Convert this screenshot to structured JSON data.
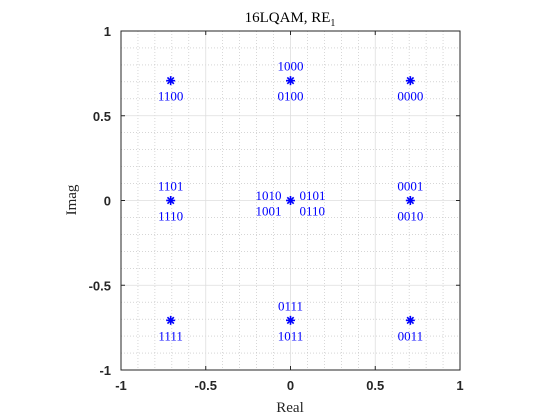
{
  "chart_data": {
    "type": "scatter",
    "title": "16LQAM, RE",
    "title_subscript": "1",
    "xlabel": "Real",
    "ylabel": "Imag",
    "xlim": [
      -1,
      1
    ],
    "ylim": [
      -1,
      1
    ],
    "xticks": [
      "-1",
      "-0.5",
      "0",
      "0.5",
      "1"
    ],
    "yticks": [
      "1",
      "0.5",
      "0",
      "-0.5",
      "-1"
    ],
    "grid": true,
    "minor_grid": true,
    "marker": "asterisk",
    "color": "#0000ff",
    "points": [
      {
        "x": -0.707,
        "y": 0.707,
        "labels": [
          {
            "text": "1100",
            "pos": "below"
          }
        ]
      },
      {
        "x": 0,
        "y": 0.707,
        "labels": [
          {
            "text": "1000",
            "pos": "above"
          },
          {
            "text": "0100",
            "pos": "below"
          }
        ]
      },
      {
        "x": 0.707,
        "y": 0.707,
        "labels": [
          {
            "text": "0000",
            "pos": "below"
          }
        ]
      },
      {
        "x": -0.707,
        "y": 0,
        "labels": [
          {
            "text": "1101",
            "pos": "above"
          },
          {
            "text": "1110",
            "pos": "below"
          }
        ]
      },
      {
        "x": 0,
        "y": 0,
        "labels": [
          {
            "text": "1010",
            "pos": "above-left"
          },
          {
            "text": "1001",
            "pos": "below-left"
          },
          {
            "text": "0101",
            "pos": "above-right"
          },
          {
            "text": "0110",
            "pos": "below-right"
          }
        ]
      },
      {
        "x": 0.707,
        "y": 0,
        "labels": [
          {
            "text": "0001",
            "pos": "above"
          },
          {
            "text": "0010",
            "pos": "below"
          }
        ]
      },
      {
        "x": -0.707,
        "y": -0.707,
        "labels": [
          {
            "text": "1111",
            "pos": "below"
          }
        ]
      },
      {
        "x": 0,
        "y": -0.707,
        "labels": [
          {
            "text": "0111",
            "pos": "above"
          },
          {
            "text": "1011",
            "pos": "below"
          }
        ]
      },
      {
        "x": 0.707,
        "y": -0.707,
        "labels": [
          {
            "text": "0011",
            "pos": "below"
          }
        ]
      }
    ]
  }
}
